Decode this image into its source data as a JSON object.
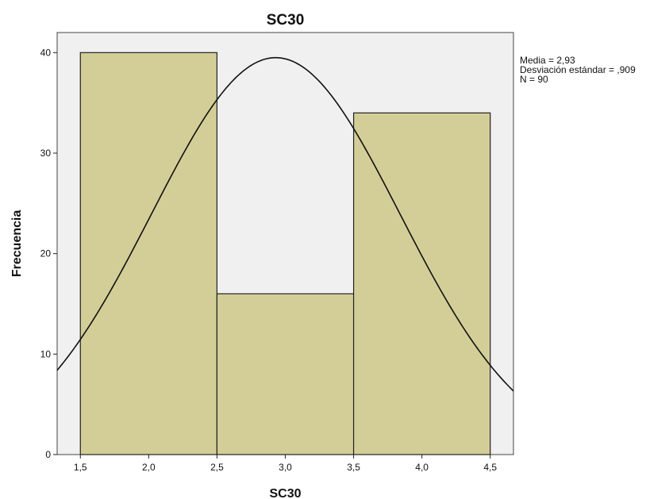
{
  "chart_data": {
    "type": "bar",
    "title": "SC30",
    "xlabel": "SC30",
    "ylabel": "Frecuencia",
    "bins": [
      {
        "x0": 1.5,
        "x1": 2.5,
        "value": 40
      },
      {
        "x0": 2.5,
        "x1": 3.5,
        "value": 16
      },
      {
        "x0": 3.5,
        "x1": 4.5,
        "value": 34
      }
    ],
    "xlim": [
      1.33,
      4.67
    ],
    "ylim": [
      0,
      42
    ],
    "x_ticks": [
      {
        "value": 1.5,
        "label": "1,5"
      },
      {
        "value": 2.0,
        "label": "2,0"
      },
      {
        "value": 2.5,
        "label": "2,5"
      },
      {
        "value": 3.0,
        "label": "3,0"
      },
      {
        "value": 3.5,
        "label": "3,5"
      },
      {
        "value": 4.0,
        "label": "4,0"
      },
      {
        "value": 4.5,
        "label": "4,5"
      }
    ],
    "y_ticks": [
      {
        "value": 0,
        "label": "0"
      },
      {
        "value": 10,
        "label": "10"
      },
      {
        "value": 20,
        "label": "20"
      },
      {
        "value": 30,
        "label": "30"
      },
      {
        "value": 40,
        "label": "40"
      }
    ],
    "normal_curve": {
      "mean": 2.93,
      "sd": 0.909,
      "n": 90,
      "bin_width": 1
    },
    "stats_lines": [
      "Media = 2,93",
      "Desviación estándar = ,909",
      "N = 90"
    ],
    "grid": false,
    "colors": {
      "plot_background": "#f0f0f0",
      "bar_fill": "#d3ce97",
      "bar_stroke": "#222222",
      "curve": "#111111"
    }
  }
}
